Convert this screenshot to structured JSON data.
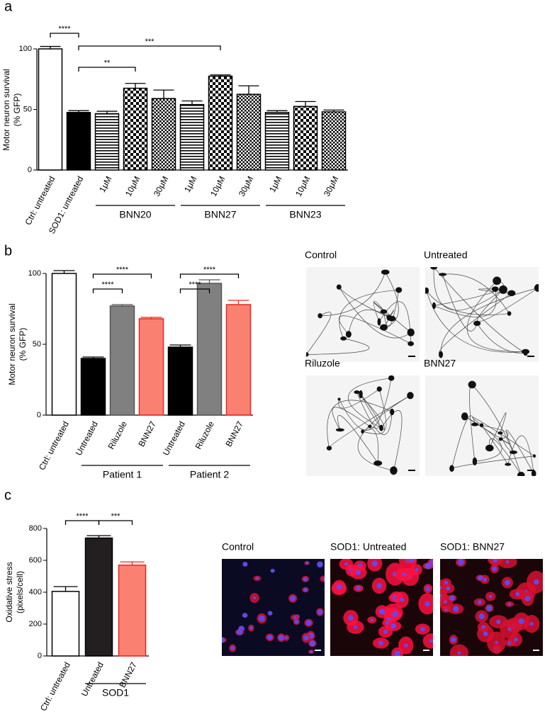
{
  "chart_data": [
    {
      "type": "bar",
      "panel_label": "a",
      "ylabel": [
        "Motor neuron survival",
        "(% GFP)"
      ],
      "categories": [
        "Ctrl: untreated",
        "SOD1: untreated",
        "1μM",
        "10μM",
        "30μM",
        "1μM",
        "10μM",
        "30μM",
        "1μM",
        "10μM",
        "30μM"
      ],
      "values": [
        100,
        47.5,
        46.5,
        67.5,
        59,
        54,
        77.5,
        62.5,
        47.5,
        52.5,
        48
      ],
      "errors": [
        2,
        1.5,
        2,
        4,
        7,
        3,
        1,
        7,
        1.5,
        4,
        1.5
      ],
      "fills": [
        "#ffffff",
        "#000000",
        "hlines",
        "checker",
        "checker-fine",
        "hlines",
        "checker",
        "checker-fine",
        "hlines",
        "checker",
        "checker-fine"
      ],
      "ylim": [
        0,
        100
      ],
      "yticks": [
        0,
        50,
        100
      ],
      "groups": [
        {
          "label": "BNN20",
          "from": 2,
          "to": 4
        },
        {
          "label": "BNN27",
          "from": 5,
          "to": 7
        },
        {
          "label": "BNN23",
          "from": 8,
          "to": 10
        }
      ],
      "annotations": [
        {
          "text": "****",
          "from": 0,
          "to": 1
        },
        {
          "text": "***",
          "from": 1,
          "to": 6
        },
        {
          "text": "**",
          "from": 1,
          "to": 3
        }
      ]
    },
    {
      "type": "bar",
      "panel_label": "b",
      "ylabel": [
        "Motor neuron survival",
        "(% GFP)"
      ],
      "categories": [
        "Ctrl: untreated",
        "Untreated",
        "Riluzole",
        "BNN27",
        "Untreated",
        "Riluzole",
        "BNN27"
      ],
      "values": [
        100,
        40,
        77,
        68,
        48,
        93,
        78
      ],
      "errors": [
        2,
        1,
        1,
        1,
        1.5,
        2.5,
        3
      ],
      "fills": [
        "#ffffff",
        "#000000",
        "#808080",
        "#fa8072",
        "#000000",
        "#808080",
        "#fa8072"
      ],
      "edge_colors": [
        "#000000",
        "#000000",
        "#555555",
        "#e8291c",
        "#000000",
        "#555555",
        "#e8291c"
      ],
      "ylim": [
        0,
        100
      ],
      "yticks": [
        0,
        50,
        100
      ],
      "groups": [
        {
          "label": "Patient 1",
          "from": 1,
          "to": 3
        },
        {
          "label": "Patient 2",
          "from": 4,
          "to": 6
        }
      ],
      "annotations": [
        {
          "text": "****",
          "from": 1,
          "to": 3
        },
        {
          "text": "****",
          "from": 1,
          "to": 2
        },
        {
          "text": "****",
          "from": 4,
          "to": 6
        },
        {
          "text": "****",
          "from": 4,
          "to": 5
        }
      ]
    },
    {
      "type": "bar",
      "panel_label": "c",
      "ylabel": [
        "Oxidative stress",
        "(pixels/cell)"
      ],
      "categories": [
        "Ctrl: untreated",
        "Untreated",
        "BNN27"
      ],
      "values": [
        405,
        740,
        570
      ],
      "errors": [
        30,
        15,
        20
      ],
      "fills": [
        "#ffffff",
        "#231f20",
        "#fa8072"
      ],
      "edge_colors": [
        "#000000",
        "#000000",
        "#e8291c"
      ],
      "ylim": [
        0,
        800
      ],
      "yticks": [
        0,
        200,
        400,
        600,
        800
      ],
      "groups": [
        {
          "label": "SOD1",
          "from": 1,
          "to": 2
        }
      ],
      "annotations": [
        {
          "text": "****",
          "from": 0,
          "to": 1
        },
        {
          "text": "***",
          "from": 1,
          "to": 2
        }
      ]
    }
  ],
  "micrographs": [
    {
      "style": "grayscale",
      "images": [
        {
          "label": "Control",
          "label_color": "#000000"
        },
        {
          "label": "Untreated",
          "label_color": "#000000"
        },
        {
          "label": "Riluzole",
          "label_color": "#808080"
        },
        {
          "label": "BNN27",
          "label_color": "#e8291c"
        }
      ]
    },
    {
      "style": "fluorescence",
      "images": [
        {
          "label": "Control",
          "label_color": "#000000"
        },
        {
          "label": "SOD1: Untreated",
          "label_color": "#000000"
        },
        {
          "label": "SOD1: BNN27",
          "label_color": "#e8291c"
        }
      ]
    }
  ]
}
